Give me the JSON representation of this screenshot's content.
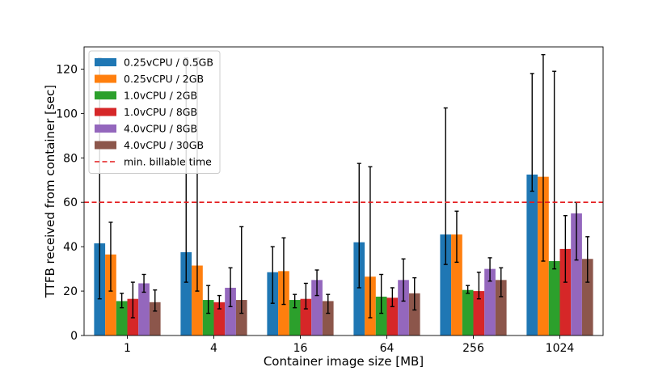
{
  "chart_data": {
    "type": "bar",
    "title": "",
    "xlabel": "Container image size [MB]",
    "ylabel": "TTFB received from container [sec]",
    "ylim": [
      0,
      130
    ],
    "yticks": [
      0,
      20,
      40,
      60,
      80,
      100,
      120
    ],
    "categories": [
      "1",
      "4",
      "16",
      "64",
      "256",
      "1024"
    ],
    "series": [
      {
        "name": "0.25vCPU / 0.5GB",
        "color": "#1f77b4",
        "values": [
          41.5,
          37.5,
          28.5,
          42,
          45.5,
          72.5
        ],
        "err_low": [
          16.5,
          24,
          14.5,
          21.5,
          32,
          65
        ],
        "err_high": [
          125,
          125,
          40,
          77.5,
          102.5,
          118
        ]
      },
      {
        "name": "0.25vCPU / 2GB",
        "color": "#ff7f0e",
        "values": [
          36.5,
          31.5,
          29,
          26.5,
          45.5,
          71.5
        ],
        "err_low": [
          20,
          20,
          14,
          8,
          33,
          33.5
        ],
        "err_high": [
          51,
          125,
          44,
          76,
          56,
          126.5
        ]
      },
      {
        "name": "1.0vCPU / 2GB",
        "color": "#2ca02c",
        "values": [
          15.5,
          16,
          16,
          17.5,
          20.5,
          33.5
        ],
        "err_low": [
          12.5,
          10,
          12.5,
          10,
          19,
          30
        ],
        "err_high": [
          19,
          22.5,
          18.5,
          27.5,
          22.5,
          119
        ]
      },
      {
        "name": "1.0vCPU / 8GB",
        "color": "#d62728",
        "values": [
          16.5,
          15,
          16.5,
          17,
          20,
          39
        ],
        "err_low": [
          8,
          12,
          12,
          13,
          16.5,
          24
        ],
        "err_high": [
          24,
          18,
          23.5,
          21.5,
          28.5,
          54
        ]
      },
      {
        "name": "4.0vCPU / 8GB",
        "color": "#9467bd",
        "values": [
          23.5,
          21.5,
          25,
          25,
          30,
          55
        ],
        "err_low": [
          19.5,
          13,
          18,
          15.5,
          24.5,
          34
        ],
        "err_high": [
          27.5,
          30.5,
          29.5,
          34.5,
          35,
          60
        ]
      },
      {
        "name": "4.0vCPU / 30GB",
        "color": "#8c564b",
        "values": [
          15,
          16,
          15.5,
          19,
          25,
          34.5
        ],
        "err_low": [
          11,
          10,
          10,
          11.5,
          17.5,
          24
        ],
        "err_high": [
          20.5,
          49,
          18.5,
          26,
          30.5,
          44.5
        ]
      }
    ],
    "reference_line": {
      "name": "min. billable time",
      "value": 60,
      "color": "#e41a1c",
      "style": "dashed"
    },
    "legend": {
      "position": "top-left"
    },
    "grid": false
  }
}
